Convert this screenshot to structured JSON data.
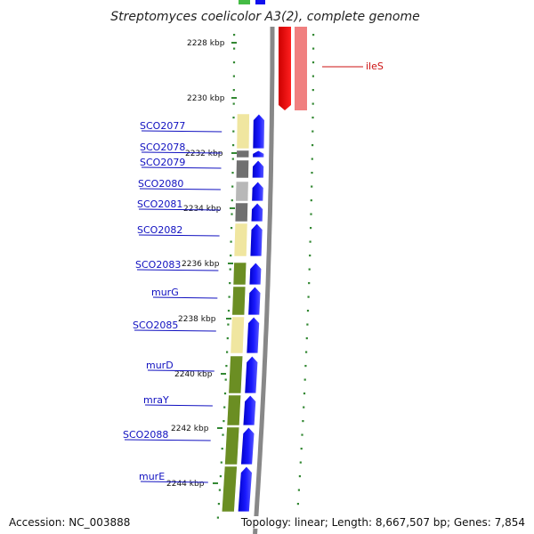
{
  "title": "Streptomyces coelicolor A3(2), complete genome",
  "accession_text": "Accession: NC_003888",
  "topology_text": "Topology: linear; Length: 8,667,507 bp; Genes: 7,854",
  "colors": {
    "forward_arrow": "#1010ee",
    "reverse_gene": "#ee0000",
    "reverse_gene_light": "#f08080",
    "tick": "#338833",
    "backbone": "#888888",
    "gene_label": "#1010c0",
    "gene_label_red": "#cc1111",
    "pale_yellow": "#f0e6a0",
    "dark_gray": "#707070",
    "light_gray": "#b8b8b8",
    "olive": "#6b8e23"
  },
  "kbp_ticks": [
    "2228 kbp",
    "2230 kbp",
    "2232 kbp",
    "2234 kbp",
    "2236 kbp",
    "2238 kbp",
    "2240 kbp",
    "2242 kbp",
    "2244 kbp"
  ],
  "genes": [
    {
      "name": "SCO2077"
    },
    {
      "name": "SCO2078"
    },
    {
      "name": "SCO2079"
    },
    {
      "name": "SCO2080"
    },
    {
      "name": "SCO2081"
    },
    {
      "name": "SCO2082"
    },
    {
      "name": "SCO2083"
    },
    {
      "name": "murG"
    },
    {
      "name": "SCO2085"
    },
    {
      "name": "murD"
    },
    {
      "name": "mraY"
    },
    {
      "name": "SCO2088"
    },
    {
      "name": "murE"
    }
  ],
  "reverse_gene": {
    "name": "ileS"
  }
}
